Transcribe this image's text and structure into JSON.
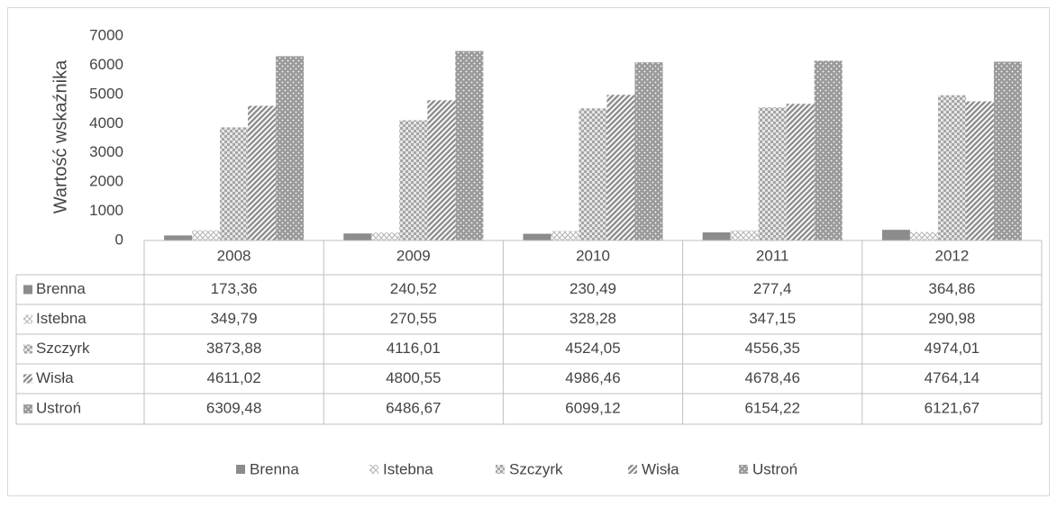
{
  "chart_data": {
    "type": "bar",
    "y_label": "Wartość wskaźnika",
    "categories": [
      "2008",
      "2009",
      "2010",
      "2011",
      "2012"
    ],
    "ylim": [
      0,
      7000
    ],
    "yticks": [
      0,
      1000,
      2000,
      3000,
      4000,
      5000,
      6000,
      7000
    ],
    "data_table": true,
    "legend": "bottom",
    "series": [
      {
        "name": "Brenna",
        "color": "#8c8c8c",
        "pattern": "solid",
        "values": [
          173.36,
          240.52,
          230.49,
          277.4,
          364.86
        ],
        "value_labels": [
          "173,36",
          "240,52",
          "230,49",
          "277,4",
          "364,86"
        ]
      },
      {
        "name": "Istebna",
        "color": "#b4b4b4",
        "pattern": "diamond",
        "values": [
          349.79,
          270.55,
          328.28,
          347.15,
          290.98
        ],
        "value_labels": [
          "349,79",
          "270,55",
          "328,28",
          "347,15",
          "290,98"
        ]
      },
      {
        "name": "Szczyrk",
        "color": "#a6a6a6",
        "pattern": "checker",
        "values": [
          3873.88,
          4116.01,
          4524.05,
          4556.35,
          4974.01
        ],
        "value_labels": [
          "3873,88",
          "4116,01",
          "4524,05",
          "4556,35",
          "4974,01"
        ]
      },
      {
        "name": "Wisła",
        "color": "#8f8f8f",
        "pattern": "stripes",
        "values": [
          4611.02,
          4800.55,
          4986.46,
          4678.46,
          4764.14
        ],
        "value_labels": [
          "4611,02",
          "4800,55",
          "4986,46",
          "4678,46",
          "4764,14"
        ]
      },
      {
        "name": "Ustroń",
        "color": "#9a9a9a",
        "pattern": "dots",
        "values": [
          6309.48,
          6486.67,
          6099.12,
          6154.22,
          6121.67
        ],
        "value_labels": [
          "6309,48",
          "6486,67",
          "6099,12",
          "6154,22",
          "6121,67"
        ]
      }
    ]
  }
}
